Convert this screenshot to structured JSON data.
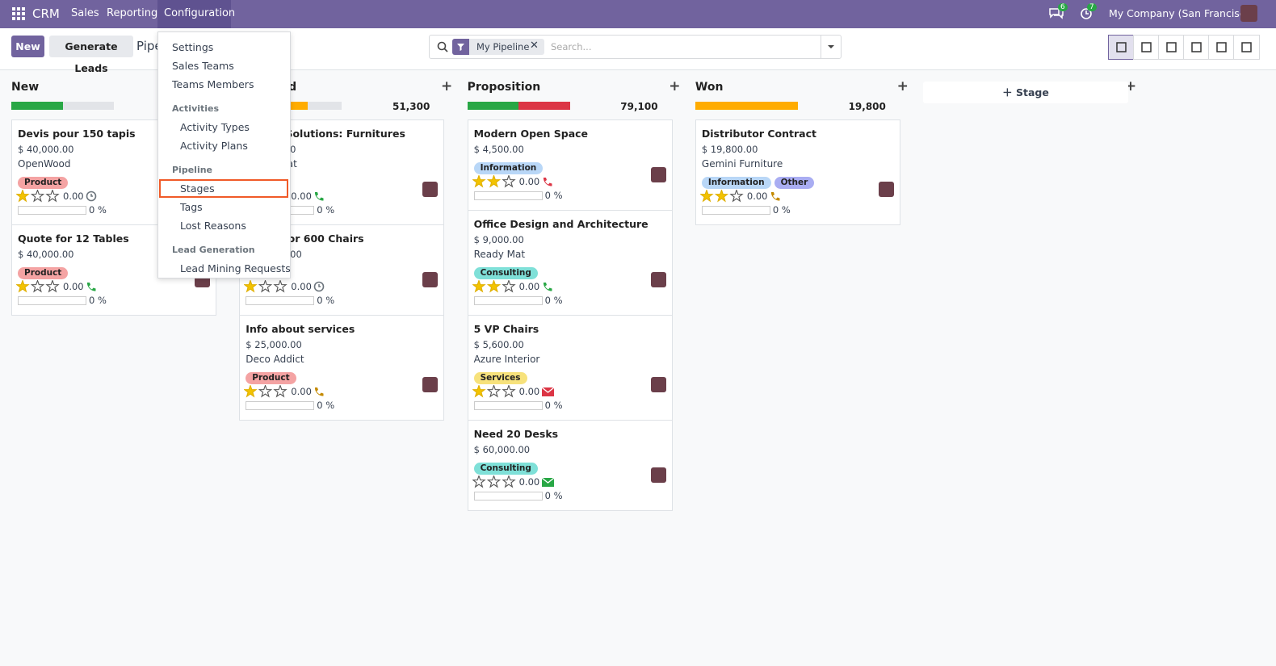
{
  "navbar": {
    "app": "CRM",
    "menus": [
      "Sales",
      "Reporting",
      "Configuration"
    ],
    "messages_count": "6",
    "activities_count": "7",
    "company": "My Company (San Francisco)"
  },
  "control_panel": {
    "new_button": "New",
    "generate_button": "Generate Leads",
    "breadcrumb": "Pipeline",
    "facet": "My Pipeline",
    "search_placeholder": "Search..."
  },
  "add_stage": "Stage",
  "columns": [
    {
      "title": "New",
      "progress": [
        {
          "color": "#28a745",
          "value": 50
        }
      ],
      "cards": [
        {
          "name": "Devis pour 150 tapis",
          "amount": "$ 40,000.00",
          "company": "OpenWood",
          "tags": [
            {
              "name": "Product",
              "color": "#f4a3a3"
            }
          ],
          "priority": 1,
          "revenue": "0.00",
          "activity": {
            "icon": "clock",
            "color": "#6c757d"
          },
          "probability": "0 %"
        },
        {
          "name": "Quote for 12 Tables",
          "amount": "$ 40,000.00",
          "tags": [
            {
              "name": "Product",
              "color": "#f4a3a3"
            }
          ],
          "priority": 1,
          "revenue": "0.00",
          "activity": {
            "icon": "phone",
            "color": "#28a745"
          },
          "probability": "0 %"
        }
      ]
    },
    {
      "title": "Qualified",
      "total": "51,300",
      "progress": [
        {
          "color": "#ffac00",
          "value": 67
        }
      ],
      "cards": [
        {
          "name": "Global Solutions: Furnitures",
          "amount": "$ 3,800.00",
          "company": "Ready Mat",
          "tags": [],
          "priority": 0,
          "revenue": "0.00",
          "activity": {
            "icon": "phone",
            "color": "#28a745"
          },
          "probability": "0 %"
        },
        {
          "name": "Quote for 600 Chairs",
          "amount": "$ 22,500.00",
          "tags": [],
          "priority": 1,
          "revenue": "0.00",
          "activity": {
            "icon": "clock",
            "color": "#6c757d"
          },
          "probability": "0 %"
        },
        {
          "name": "Info about services",
          "amount": "$ 25,000.00",
          "company": "Deco Addict",
          "tags": [
            {
              "name": "Product",
              "color": "#f4a3a3"
            }
          ],
          "priority": 1,
          "revenue": "0.00",
          "activity": {
            "icon": "phone",
            "color": "#c48a00"
          },
          "probability": "0 %"
        }
      ]
    },
    {
      "title": "Proposition",
      "total": "79,100",
      "progress": [
        {
          "color": "#28a745",
          "value": 50
        },
        {
          "color": "#dc3545",
          "value": 50
        }
      ],
      "cards": [
        {
          "name": "Modern Open Space",
          "amount": "$ 4,500.00",
          "tags": [
            {
              "name": "Information",
              "color": "#b9d7f7"
            }
          ],
          "priority": 2,
          "revenue": "0.00",
          "activity": {
            "icon": "phone",
            "color": "#dc3545"
          },
          "probability": "0 %"
        },
        {
          "name": "Office Design and Architecture",
          "amount": "$ 9,000.00",
          "company": "Ready Mat",
          "tags": [
            {
              "name": "Consulting",
              "color": "#7fe0d8"
            }
          ],
          "priority": 2,
          "revenue": "0.00",
          "activity": {
            "icon": "phone",
            "color": "#28a745"
          },
          "probability": "0 %"
        },
        {
          "name": "5 VP Chairs",
          "amount": "$ 5,600.00",
          "company": "Azure Interior",
          "tags": [
            {
              "name": "Services",
              "color": "#f7e27c"
            }
          ],
          "priority": 1,
          "revenue": "0.00",
          "activity": {
            "icon": "envelope",
            "color": "#dc3545"
          },
          "probability": "0 %"
        },
        {
          "name": "Need 20 Desks",
          "amount": "$ 60,000.00",
          "tags": [
            {
              "name": "Consulting",
              "color": "#7fe0d8"
            }
          ],
          "priority": 0,
          "revenue": "0.00",
          "activity": {
            "icon": "envelope",
            "color": "#28a745"
          },
          "probability": "0 %"
        }
      ]
    },
    {
      "title": "Won",
      "total": "19,800",
      "progress": [
        {
          "color": "#ffac00",
          "value": 100
        }
      ],
      "cards": [
        {
          "name": "Distributor Contract",
          "amount": "$ 19,800.00",
          "company": "Gemini Furniture",
          "tags": [
            {
              "name": "Information",
              "color": "#b9d7f7"
            },
            {
              "name": "Other",
              "color": "#a9adf2"
            }
          ],
          "priority": 2,
          "revenue": "0.00",
          "activity": {
            "icon": "phone",
            "color": "#c48a00"
          },
          "probability": "0 %"
        }
      ]
    }
  ],
  "config_menu": [
    {
      "items": [
        "Settings",
        "Sales Teams",
        "Teams Members"
      ]
    },
    {
      "header": "Activities",
      "items": [
        "Activity Types",
        "Activity Plans"
      ]
    },
    {
      "header": "Pipeline",
      "items": [
        "Stages",
        "Tags",
        "Lost Reasons"
      ],
      "highlighted": 0
    },
    {
      "header": "Lead Generation",
      "items": [
        "Lead Mining Requests"
      ]
    }
  ]
}
